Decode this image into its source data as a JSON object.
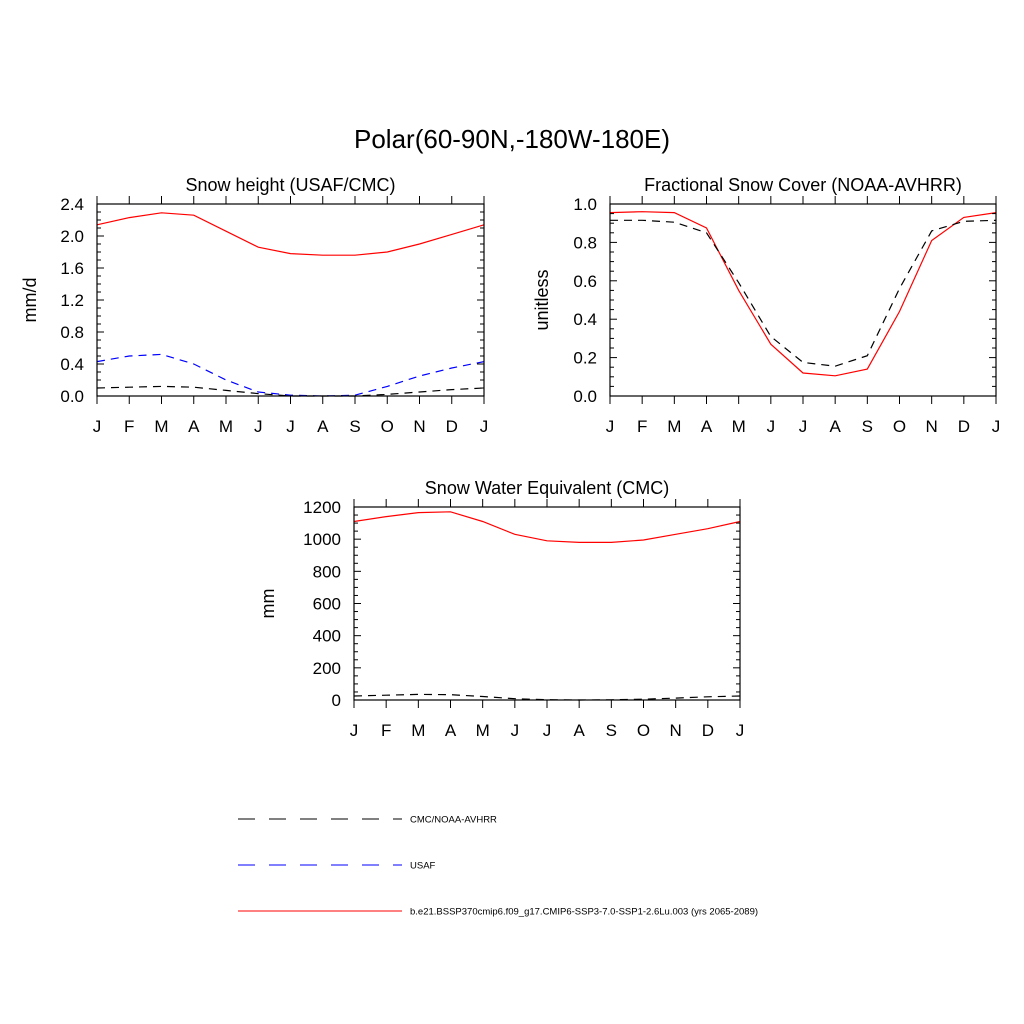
{
  "figure": {
    "title": "Polar(60-90N,-180W-180E)"
  },
  "colors": {
    "model": "#ff0000",
    "obs": "#000000",
    "usaf": "#0000ff"
  },
  "chart_data": [
    {
      "type": "line",
      "title": "Snow height (USAF/CMC)",
      "xlabel": "",
      "ylabel": "mm/d",
      "categories": [
        "J",
        "F",
        "M",
        "A",
        "M",
        "J",
        "J",
        "A",
        "S",
        "O",
        "N",
        "D",
        "J"
      ],
      "ylim": [
        0,
        2.4
      ],
      "yticks": [
        "0.0",
        "0.4",
        "0.8",
        "1.2",
        "1.6",
        "2.0",
        "2.4"
      ],
      "series": [
        {
          "key": "model",
          "values": [
            2.14,
            2.23,
            2.29,
            2.26,
            2.06,
            1.86,
            1.78,
            1.76,
            1.76,
            1.8,
            1.9,
            2.02,
            2.14
          ]
        },
        {
          "key": "usaf",
          "values": [
            0.43,
            0.5,
            0.52,
            0.4,
            0.2,
            0.05,
            0.01,
            0.0,
            0.01,
            0.12,
            0.25,
            0.35,
            0.43
          ]
        },
        {
          "key": "obs",
          "values": [
            0.1,
            0.11,
            0.12,
            0.11,
            0.07,
            0.03,
            0.0,
            0.0,
            0.0,
            0.02,
            0.05,
            0.08,
            0.1
          ]
        }
      ]
    },
    {
      "type": "line",
      "title": "Fractional Snow Cover (NOAA-AVHRR)",
      "xlabel": "",
      "ylabel": "unitless",
      "categories": [
        "J",
        "F",
        "M",
        "A",
        "M",
        "J",
        "J",
        "A",
        "S",
        "O",
        "N",
        "D",
        "J"
      ],
      "ylim": [
        0,
        1.0
      ],
      "yticks": [
        "0.0",
        "0.2",
        "0.4",
        "0.6",
        "0.8",
        "1.0"
      ],
      "series": [
        {
          "key": "model",
          "values": [
            0.955,
            0.96,
            0.955,
            0.875,
            0.55,
            0.27,
            0.12,
            0.105,
            0.14,
            0.44,
            0.81,
            0.93,
            0.955
          ]
        },
        {
          "key": "obs",
          "values": [
            0.915,
            0.915,
            0.905,
            0.85,
            0.59,
            0.31,
            0.175,
            0.155,
            0.21,
            0.56,
            0.86,
            0.91,
            0.915
          ]
        }
      ]
    },
    {
      "type": "line",
      "title": "Snow Water Equivalent (CMC)",
      "xlabel": "",
      "ylabel": "mm",
      "categories": [
        "J",
        "F",
        "M",
        "A",
        "M",
        "J",
        "J",
        "A",
        "S",
        "O",
        "N",
        "D",
        "J"
      ],
      "ylim": [
        0,
        1200
      ],
      "yticks": [
        "0",
        "200",
        "400",
        "600",
        "800",
        "1000",
        "1200"
      ],
      "series": [
        {
          "key": "model",
          "values": [
            1110,
            1140,
            1165,
            1170,
            1110,
            1030,
            990,
            980,
            980,
            995,
            1030,
            1065,
            1110
          ]
        },
        {
          "key": "obs",
          "values": [
            25,
            30,
            35,
            33,
            22,
            8,
            2,
            0,
            1,
            5,
            12,
            20,
            25
          ]
        }
      ]
    }
  ],
  "legend": {
    "items": [
      {
        "key": "obs",
        "label": "CMC/NOAA-AVHRR"
      },
      {
        "key": "usaf",
        "label": "USAF"
      },
      {
        "key": "model",
        "label": "b.e21.BSSP370cmip6.f09_g17.CMIP6-SSP3-7.0-SSP1-2.6Lu.003 (yrs 2065-2089)"
      }
    ]
  }
}
